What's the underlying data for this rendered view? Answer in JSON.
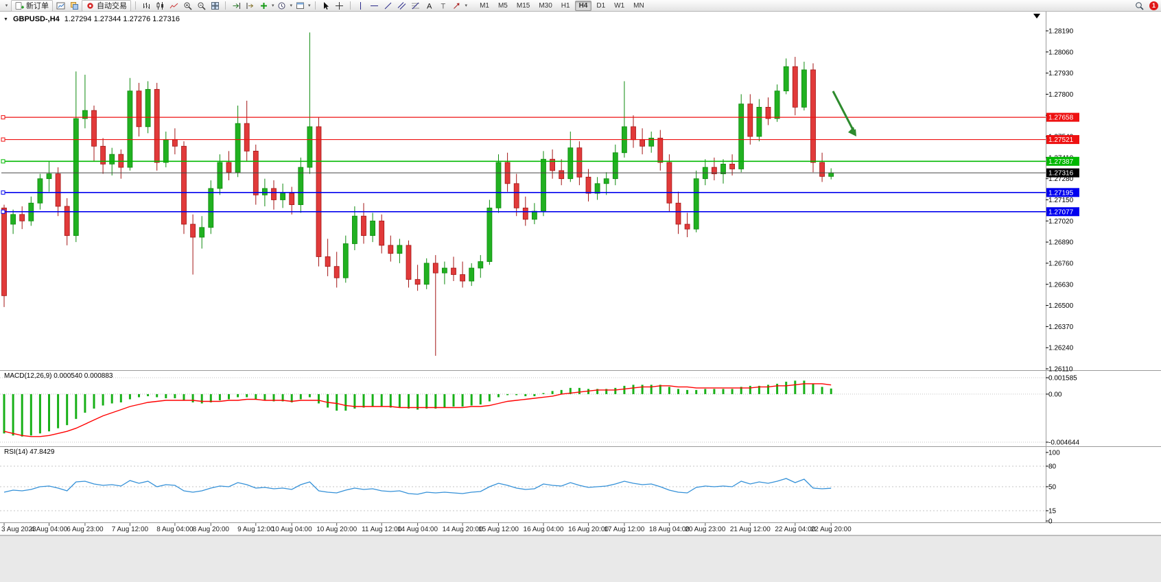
{
  "toolbar": {
    "new_order_label": "新订单",
    "autotrading_label": "自动交易",
    "timeframes": [
      "M1",
      "M5",
      "M15",
      "M30",
      "H1",
      "H4",
      "D1",
      "W1",
      "MN"
    ],
    "active_timeframe": "H4",
    "notification_count": "1"
  },
  "chart_header": {
    "symbol": "GBPUSD-,H4",
    "ohlc": "1.27294 1.27344 1.27276 1.27316"
  },
  "indicator_labels": {
    "macd": "MACD(12,26,9) 0.000540 0.000883",
    "rsi": "RSI(14) 47.8429"
  },
  "chart_data": {
    "type": "candlestick",
    "symbol": "GBPUSD-",
    "timeframe": "H4",
    "price_axis": {
      "min": 1.2611,
      "max": 1.2819,
      "ticks": [
        1.2819,
        1.2806,
        1.2793,
        1.278,
        1.2767,
        1.2754,
        1.2741,
        1.2728,
        1.2715,
        1.2702,
        1.2689,
        1.2676,
        1.2663,
        1.265,
        1.2637,
        1.2624,
        1.2611
      ]
    },
    "candles": {
      "ohlc": [
        [
          1.271,
          1.2712,
          1.2649,
          1.2656
        ],
        [
          1.27,
          1.2709,
          1.2694,
          1.2706
        ],
        [
          1.2706,
          1.2711,
          1.2697,
          1.2702
        ],
        [
          1.2702,
          1.2717,
          1.2699,
          1.2713
        ],
        [
          1.2713,
          1.2731,
          1.2709,
          1.2728
        ],
        [
          1.2728,
          1.2739,
          1.272,
          1.2731
        ],
        [
          1.2731,
          1.2735,
          1.2705,
          1.2711
        ],
        [
          1.2711,
          1.2716,
          1.2687,
          1.2693
        ],
        [
          1.2693,
          1.2794,
          1.2689,
          1.2765
        ],
        [
          1.2765,
          1.2792,
          1.2759,
          1.277
        ],
        [
          1.277,
          1.2773,
          1.2739,
          1.2748
        ],
        [
          1.2748,
          1.2753,
          1.2731,
          1.2737
        ],
        [
          1.2737,
          1.2747,
          1.273,
          1.2743
        ],
        [
          1.2743,
          1.2746,
          1.2728,
          1.2735
        ],
        [
          1.2735,
          1.279,
          1.2733,
          1.2782
        ],
        [
          1.2782,
          1.2787,
          1.2754,
          1.276
        ],
        [
          1.276,
          1.2788,
          1.2756,
          1.2783
        ],
        [
          1.2783,
          1.2787,
          1.2733,
          1.2738
        ],
        [
          1.2738,
          1.2757,
          1.2735,
          1.2752
        ],
        [
          1.2752,
          1.2759,
          1.2743,
          1.2748
        ],
        [
          1.2748,
          1.2751,
          1.2694,
          1.27
        ],
        [
          1.27,
          1.2706,
          1.2669,
          1.2692
        ],
        [
          1.2692,
          1.2705,
          1.2685,
          1.2698
        ],
        [
          1.2698,
          1.2727,
          1.2694,
          1.2722
        ],
        [
          1.2722,
          1.2743,
          1.2718,
          1.2738
        ],
        [
          1.2738,
          1.2745,
          1.2727,
          1.2732
        ],
        [
          1.2732,
          1.2773,
          1.2729,
          1.2762
        ],
        [
          1.2762,
          1.2776,
          1.2739,
          1.2745
        ],
        [
          1.2745,
          1.2749,
          1.2712,
          1.2718
        ],
        [
          1.2718,
          1.2728,
          1.2711,
          1.2722
        ],
        [
          1.2722,
          1.2727,
          1.2709,
          1.2715
        ],
        [
          1.2715,
          1.2725,
          1.271,
          1.2719
        ],
        [
          1.2719,
          1.2723,
          1.2706,
          1.2712
        ],
        [
          1.2712,
          1.2741,
          1.2707,
          1.2735
        ],
        [
          1.2735,
          1.2818,
          1.2731,
          1.276
        ],
        [
          1.276,
          1.2766,
          1.2674,
          1.268
        ],
        [
          1.268,
          1.2691,
          1.2668,
          1.2674
        ],
        [
          1.2674,
          1.2683,
          1.2661,
          1.2667
        ],
        [
          1.2667,
          1.2693,
          1.2664,
          1.2688
        ],
        [
          1.2688,
          1.2711,
          1.2684,
          1.2705
        ],
        [
          1.2705,
          1.2713,
          1.2688,
          1.2693
        ],
        [
          1.2693,
          1.2707,
          1.2689,
          1.2702
        ],
        [
          1.2702,
          1.2706,
          1.2682,
          1.2687
        ],
        [
          1.2687,
          1.2693,
          1.2677,
          1.2682
        ],
        [
          1.2682,
          1.2691,
          1.2676,
          1.2687
        ],
        [
          1.2687,
          1.269,
          1.2661,
          1.2666
        ],
        [
          1.2666,
          1.2675,
          1.2659,
          1.2663
        ],
        [
          1.2663,
          1.2679,
          1.266,
          1.2676
        ],
        [
          1.2676,
          1.2681,
          1.2619,
          1.267
        ],
        [
          1.267,
          1.2677,
          1.2663,
          1.2673
        ],
        [
          1.2673,
          1.268,
          1.2665,
          1.2669
        ],
        [
          1.2669,
          1.2677,
          1.2661,
          1.2665
        ],
        [
          1.2665,
          1.2676,
          1.2662,
          1.2673
        ],
        [
          1.2673,
          1.2681,
          1.2667,
          1.2677
        ],
        [
          1.2677,
          1.2715,
          1.2675,
          1.271
        ],
        [
          1.271,
          1.2743,
          1.2707,
          1.2738
        ],
        [
          1.2738,
          1.2744,
          1.272,
          1.2725
        ],
        [
          1.2725,
          1.2731,
          1.2705,
          1.271
        ],
        [
          1.271,
          1.2717,
          1.2699,
          1.2703
        ],
        [
          1.2703,
          1.2713,
          1.27,
          1.2708
        ],
        [
          1.2708,
          1.2745,
          1.2705,
          1.274
        ],
        [
          1.274,
          1.2746,
          1.2728,
          1.2733
        ],
        [
          1.2733,
          1.274,
          1.2724,
          1.2728
        ],
        [
          1.2728,
          1.2757,
          1.2726,
          1.2747
        ],
        [
          1.2747,
          1.2751,
          1.2724,
          1.2729
        ],
        [
          1.2729,
          1.2734,
          1.2714,
          1.2719
        ],
        [
          1.2719,
          1.2729,
          1.2715,
          1.2725
        ],
        [
          1.2725,
          1.2732,
          1.2718,
          1.2728
        ],
        [
          1.2728,
          1.2749,
          1.2724,
          1.2744
        ],
        [
          1.2744,
          1.2788,
          1.2741,
          1.276
        ],
        [
          1.276,
          1.2767,
          1.2747,
          1.2752
        ],
        [
          1.2752,
          1.2759,
          1.2743,
          1.2748
        ],
        [
          1.2748,
          1.2757,
          1.2744,
          1.2753
        ],
        [
          1.2753,
          1.2758,
          1.2733,
          1.2738
        ],
        [
          1.2738,
          1.2743,
          1.2708,
          1.2713
        ],
        [
          1.2713,
          1.272,
          1.2694,
          1.27
        ],
        [
          1.27,
          1.2707,
          1.2692,
          1.2697
        ],
        [
          1.2697,
          1.2733,
          1.2695,
          1.2728
        ],
        [
          1.2728,
          1.274,
          1.2724,
          1.2735
        ],
        [
          1.2735,
          1.2741,
          1.2727,
          1.2731
        ],
        [
          1.2731,
          1.274,
          1.2725,
          1.2737
        ],
        [
          1.2737,
          1.2743,
          1.273,
          1.2734
        ],
        [
          1.2734,
          1.278,
          1.2732,
          1.2774
        ],
        [
          1.2774,
          1.278,
          1.2749,
          1.2754
        ],
        [
          1.2754,
          1.2777,
          1.2751,
          1.2772
        ],
        [
          1.2772,
          1.2778,
          1.2761,
          1.2765
        ],
        [
          1.2765,
          1.2786,
          1.2763,
          1.2782
        ],
        [
          1.2782,
          1.2802,
          1.278,
          1.2797
        ],
        [
          1.2797,
          1.2803,
          1.2767,
          1.2772
        ],
        [
          1.2772,
          1.28,
          1.277,
          1.2795
        ],
        [
          1.2795,
          1.2799,
          1.2732,
          1.2738
        ],
        [
          1.2738,
          1.2744,
          1.2726,
          1.27294
        ],
        [
          1.27294,
          1.27344,
          1.27276,
          1.27316
        ]
      ]
    },
    "time_labels": [
      {
        "i": 0,
        "t": "3 Aug 2023"
      },
      {
        "i": 5,
        "t": "4 Aug 04:00"
      },
      {
        "i": 9,
        "t": "6 Aug 23:00"
      },
      {
        "i": 14,
        "t": "7 Aug 12:00"
      },
      {
        "i": 19,
        "t": "8 Aug 04:00"
      },
      {
        "i": 23,
        "t": "8 Aug 20:00"
      },
      {
        "i": 28,
        "t": "9 Aug 12:00"
      },
      {
        "i": 32,
        "t": "10 Aug 04:00"
      },
      {
        "i": 37,
        "t": "10 Aug 20:00"
      },
      {
        "i": 42,
        "t": "11 Aug 12:00"
      },
      {
        "i": 46,
        "t": "14 Aug 04:00"
      },
      {
        "i": 51,
        "t": "14 Aug 20:00"
      },
      {
        "i": 55,
        "t": "15 Aug 12:00"
      },
      {
        "i": 60,
        "t": "16 Aug 04:00"
      },
      {
        "i": 65,
        "t": "16 Aug 20:00"
      },
      {
        "i": 69,
        "t": "17 Aug 12:00"
      },
      {
        "i": 74,
        "t": "18 Aug 04:00"
      },
      {
        "i": 78,
        "t": "20 Aug 23:00"
      },
      {
        "i": 83,
        "t": "21 Aug 12:00"
      },
      {
        "i": 88,
        "t": "22 Aug 04:00"
      },
      {
        "i": 92,
        "t": "22 Aug 20:00"
      }
    ],
    "hlines": [
      {
        "price": 1.27658,
        "color": "#ee1111",
        "label": "1.27658",
        "width": 1.2
      },
      {
        "price": 1.27521,
        "color": "#ee1111",
        "label": "1.27521",
        "width": 1.2
      },
      {
        "price": 1.27387,
        "color": "#00b800",
        "label": "1.27387",
        "width": 1.6
      },
      {
        "price": 1.27195,
        "color": "#0000ee",
        "label": "1.27195",
        "width": 1.6
      },
      {
        "price": 1.27077,
        "color": "#0000ee",
        "label": "1.27077",
        "width": 1.6
      }
    ],
    "current_price": {
      "value": 1.27316,
      "label": "1.27316"
    },
    "macd": {
      "params": "12,26,9",
      "value": 0.00054,
      "signal_value": 0.000883,
      "range": [
        -0.004644,
        0.001585
      ],
      "axis_labels": [
        "0.001585",
        "0.00",
        "-0.004644"
      ],
      "histogram": [
        -0.0038,
        -0.004,
        -0.0041,
        -0.004,
        -0.0038,
        -0.0036,
        -0.0033,
        -0.003,
        -0.0024,
        -0.0018,
        -0.0014,
        -0.0011,
        -0.0009,
        -0.0008,
        -0.0005,
        -0.0003,
        -0.0002,
        -0.0003,
        -0.0004,
        -0.0004,
        -0.0006,
        -0.0008,
        -0.0009,
        -0.0008,
        -0.0006,
        -0.0005,
        -0.0003,
        -0.0003,
        -0.0005,
        -0.0006,
        -0.0007,
        -0.0007,
        -0.0008,
        -0.0005,
        -0.0003,
        -0.0009,
        -0.0013,
        -0.0016,
        -0.0016,
        -0.0014,
        -0.0013,
        -0.0012,
        -0.0012,
        -0.0013,
        -0.0013,
        -0.0014,
        -0.0015,
        -0.0014,
        -0.0014,
        -0.0013,
        -0.0012,
        -0.0012,
        -0.0011,
        -0.001,
        -0.0007,
        -0.0003,
        -0.0001,
        -0.0001,
        -0.0002,
        -0.0002,
        0.0001,
        0.0003,
        0.0004,
        0.0006,
        0.0006,
        0.0005,
        0.0005,
        0.0005,
        0.0006,
        0.0008,
        0.0009,
        0.0009,
        0.0009,
        0.0009,
        0.0007,
        0.0005,
        0.0004,
        0.0004,
        0.0005,
        0.0005,
        0.0005,
        0.0005,
        0.0007,
        0.0008,
        0.0008,
        0.0009,
        0.001,
        0.0012,
        0.0013,
        0.0013,
        0.001,
        0.0007,
        0.00054
      ],
      "signal": [
        -0.0036,
        -0.0038,
        -0.004,
        -0.0041,
        -0.0041,
        -0.004,
        -0.0038,
        -0.0036,
        -0.0033,
        -0.0029,
        -0.0025,
        -0.0021,
        -0.0018,
        -0.0015,
        -0.0012,
        -0.001,
        -0.0008,
        -0.0007,
        -0.0006,
        -0.0006,
        -0.0006,
        -0.0006,
        -0.0007,
        -0.0007,
        -0.0007,
        -0.0006,
        -0.0006,
        -0.0005,
        -0.0005,
        -0.0006,
        -0.0006,
        -0.0006,
        -0.0007,
        -0.0006,
        -0.0006,
        -0.0006,
        -0.0008,
        -0.0009,
        -0.0011,
        -0.0012,
        -0.0012,
        -0.0012,
        -0.0012,
        -0.0012,
        -0.0013,
        -0.0013,
        -0.0013,
        -0.0013,
        -0.0013,
        -0.0013,
        -0.0013,
        -0.0013,
        -0.0012,
        -0.0012,
        -0.0011,
        -0.0009,
        -0.0007,
        -0.0006,
        -0.0005,
        -0.0004,
        -0.0003,
        -0.0002,
        0.0,
        0.0001,
        0.0002,
        0.0003,
        0.0004,
        0.0004,
        0.0004,
        0.0005,
        0.0006,
        0.0007,
        0.0007,
        0.0008,
        0.0008,
        0.0007,
        0.0007,
        0.0006,
        0.0006,
        0.0006,
        0.0006,
        0.0006,
        0.0006,
        0.0006,
        0.0007,
        0.0007,
        0.0008,
        0.0008,
        0.0009,
        0.001,
        0.001,
        0.001,
        0.000883
      ]
    },
    "rsi": {
      "period": 14,
      "current": 47.8429,
      "levels": [
        100,
        80,
        50,
        15,
        0
      ],
      "values": [
        42,
        45,
        44,
        46,
        50,
        51,
        48,
        44,
        57,
        58,
        54,
        52,
        53,
        51,
        59,
        55,
        58,
        50,
        53,
        52,
        44,
        42,
        44,
        48,
        51,
        50,
        56,
        53,
        48,
        49,
        47,
        48,
        46,
        53,
        57,
        44,
        42,
        41,
        45,
        48,
        46,
        47,
        44,
        43,
        44,
        40,
        39,
        42,
        41,
        42,
        41,
        40,
        42,
        43,
        50,
        55,
        52,
        48,
        46,
        47,
        54,
        52,
        51,
        56,
        52,
        49,
        50,
        51,
        54,
        58,
        55,
        53,
        54,
        50,
        45,
        42,
        41,
        49,
        51,
        50,
        51,
        50,
        58,
        54,
        57,
        55,
        58,
        62,
        56,
        61,
        48,
        47,
        47.84
      ]
    },
    "arrow_annotation": {
      "color": "#2e8b2e"
    },
    "colors": {
      "up": "#21b121",
      "up_border": "#0e8a0e",
      "down": "#e13a3a",
      "down_border": "#a31515",
      "macd_histogram": "#18b018",
      "macd_signal": "#ff0000",
      "rsi_line": "#3390d8",
      "bid_line": "#444444"
    }
  }
}
